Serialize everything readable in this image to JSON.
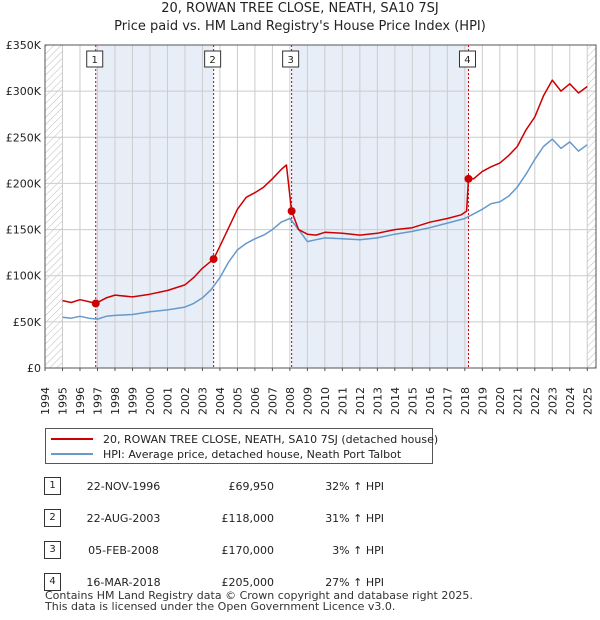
{
  "header": {
    "title": "20, ROWAN TREE CLOSE, NEATH, SA10 7SJ",
    "subtitle": "Price paid vs. HM Land Registry's House Price Index (HPI)"
  },
  "chart_data": {
    "type": "line",
    "xlim": [
      1994,
      2025.5
    ],
    "ylim": [
      0,
      350000
    ],
    "y_ticks": [
      {
        "value": 0,
        "label": "£0"
      },
      {
        "value": 50000,
        "label": "£50K"
      },
      {
        "value": 100000,
        "label": "£100K"
      },
      {
        "value": 150000,
        "label": "£150K"
      },
      {
        "value": 200000,
        "label": "£200K"
      },
      {
        "value": 250000,
        "label": "£250K"
      },
      {
        "value": 300000,
        "label": "£300K"
      },
      {
        "value": 350000,
        "label": "£350K"
      }
    ],
    "x_ticks": [
      "1994",
      "1995",
      "1996",
      "1997",
      "1998",
      "1999",
      "2000",
      "2001",
      "2002",
      "2003",
      "2004",
      "2005",
      "2006",
      "2007",
      "2008",
      "2009",
      "2010",
      "2011",
      "2012",
      "2013",
      "2014",
      "2015",
      "2016",
      "2017",
      "2018",
      "2019",
      "2020",
      "2021",
      "2022",
      "2023",
      "2024",
      "2025"
    ],
    "grid": true,
    "hatched_ranges": [
      [
        1994,
        1995
      ],
      [
        2025,
        2025.5
      ]
    ],
    "shaded_ranges": [
      [
        1996.9,
        2003.64
      ],
      [
        2008.1,
        2018.21
      ]
    ],
    "series": [
      {
        "name": "20, ROWAN TREE CLOSE, NEATH, SA10 7SJ (detached house)",
        "color": "#cc0000",
        "x": [
          1995,
          1995.5,
          1996,
          1996.5,
          1996.9,
          1997.5,
          1998,
          1999,
          2000,
          2001,
          2002,
          2002.5,
          2003,
          2003.64,
          2004,
          2004.5,
          2005,
          2005.5,
          2006,
          2006.5,
          2007,
          2007.5,
          2007.8,
          2008.1,
          2008.5,
          2009,
          2009.5,
          2010,
          2011,
          2012,
          2013,
          2014,
          2015,
          2016,
          2017,
          2017.8,
          2018.1,
          2018.21,
          2018.5,
          2019,
          2019.5,
          2020,
          2020.5,
          2021,
          2021.5,
          2022,
          2022.5,
          2023,
          2023.5,
          2024,
          2024.5,
          2025
        ],
        "values": [
          73000,
          71000,
          74000,
          72000,
          69950,
          76000,
          79000,
          77000,
          80000,
          84000,
          90000,
          98000,
          108000,
          118000,
          132000,
          152000,
          172000,
          185000,
          190000,
          196000,
          205000,
          215000,
          220000,
          170000,
          150000,
          145000,
          144000,
          147000,
          146000,
          144000,
          146000,
          150000,
          152000,
          158000,
          162000,
          166000,
          170000,
          205000,
          205000,
          213000,
          218000,
          222000,
          230000,
          240000,
          258000,
          272000,
          295000,
          312000,
          300000,
          308000,
          298000,
          305000
        ]
      },
      {
        "name": "HPI: Average price, detached house, Neath Port Talbot",
        "color": "#6699cc",
        "x": [
          1995,
          1995.5,
          1996,
          1996.5,
          1997,
          1997.5,
          1998,
          1999,
          2000,
          2001,
          2002,
          2002.5,
          2003,
          2003.5,
          2004,
          2004.5,
          2005,
          2005.5,
          2006,
          2006.5,
          2007,
          2007.5,
          2008,
          2008.5,
          2009,
          2009.5,
          2010,
          2011,
          2012,
          2013,
          2014,
          2015,
          2016,
          2017,
          2018,
          2018.5,
          2019,
          2019.5,
          2020,
          2020.5,
          2021,
          2021.5,
          2022,
          2022.5,
          2023,
          2023.5,
          2024,
          2024.5,
          2025
        ],
        "values": [
          55000,
          54000,
          56000,
          54000,
          53000,
          56000,
          57000,
          58000,
          61000,
          63000,
          66000,
          70000,
          76000,
          85000,
          98000,
          115000,
          128000,
          135000,
          140000,
          144000,
          150000,
          158000,
          162000,
          150000,
          137000,
          139000,
          141000,
          140000,
          139000,
          141000,
          145000,
          148000,
          152000,
          157000,
          162000,
          167000,
          172000,
          178000,
          180000,
          186000,
          196000,
          210000,
          226000,
          240000,
          248000,
          238000,
          245000,
          235000,
          242000
        ]
      }
    ],
    "sales": [
      {
        "num": "1",
        "x": 1996.9,
        "value": 69950
      },
      {
        "num": "2",
        "x": 2003.64,
        "value": 118000
      },
      {
        "num": "3",
        "x": 2008.1,
        "value": 170000
      },
      {
        "num": "4",
        "x": 2018.21,
        "value": 205000
      }
    ]
  },
  "legend": {
    "property_label": "20, ROWAN TREE CLOSE, NEATH, SA10 7SJ (detached house)",
    "hpi_label": "HPI: Average price, detached house, Neath Port Talbot"
  },
  "transactions": [
    {
      "num": "1",
      "date": "22-NOV-1996",
      "price": "£69,950",
      "hpi": "32% ↑ HPI"
    },
    {
      "num": "2",
      "date": "22-AUG-2003",
      "price": "£118,000",
      "hpi": "31% ↑ HPI"
    },
    {
      "num": "3",
      "date": "05-FEB-2008",
      "price": "£170,000",
      "hpi": "3% ↑ HPI"
    },
    {
      "num": "4",
      "date": "16-MAR-2018",
      "price": "£205,000",
      "hpi": "27% ↑ HPI"
    }
  ],
  "footer": {
    "line1": "Contains HM Land Registry data © Crown copyright and database right 2025.",
    "line2": "This data is licensed under the Open Government Licence v3.0."
  },
  "colors": {
    "property": "#cc0000",
    "hpi": "#6699cc",
    "shade": "#e8eef8",
    "grid": "#cccccc"
  }
}
